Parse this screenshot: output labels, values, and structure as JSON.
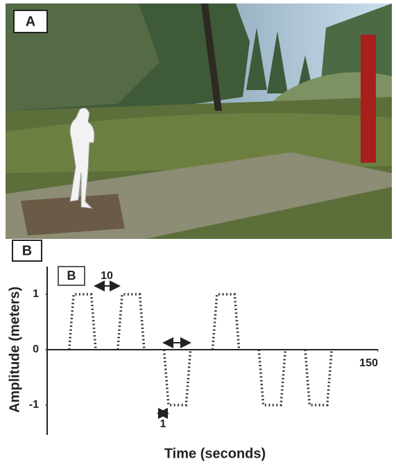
{
  "panel_labels": [
    "A",
    "B",
    "B"
  ],
  "chart_data": {
    "type": "line",
    "y_label": "Amplitude (meters)",
    "x_label": "Time (seconds)",
    "x": [
      10,
      12,
      20,
      22,
      null,
      32,
      34,
      42,
      44,
      null,
      53,
      55,
      63,
      65,
      null,
      75,
      77,
      85,
      87,
      null,
      96,
      98,
      106,
      108,
      null,
      117,
      119,
      127,
      129
    ],
    "values": [
      0,
      1,
      1,
      0,
      null,
      0,
      1,
      1,
      0,
      null,
      0,
      -1,
      -1,
      0,
      null,
      0,
      1,
      1,
      0,
      null,
      0,
      -1,
      -1,
      0,
      null,
      0,
      -1,
      -1,
      0
    ],
    "color": "#333333",
    "xlim": [
      0,
      150
    ],
    "xticks": [
      150
    ],
    "ylim": [
      -1.5,
      1.5
    ],
    "yticks": [
      -1,
      0,
      1
    ],
    "annotations": [
      "10",
      "1"
    ]
  }
}
